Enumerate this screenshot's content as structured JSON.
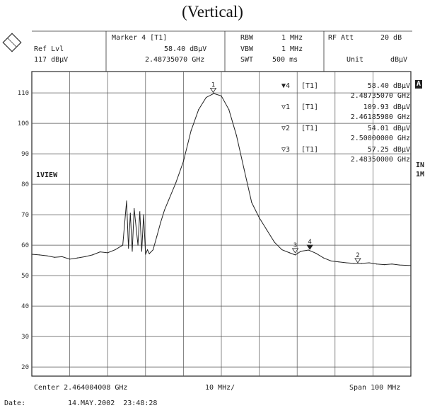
{
  "title": "(Vertical)",
  "header": {
    "ref_lvl_label": "Ref Lvl",
    "ref_lvl_value": "117 dBµV",
    "marker_label": "Marker 4 [T1]",
    "marker_level": "58.40 dBµV",
    "marker_freq": "2.48735070 GHz",
    "rbw_label": "RBW",
    "rbw_value": "1 MHz",
    "vbw_label": "VBW",
    "vbw_value": "1 MHz",
    "swt_label": "SWT",
    "swt_value": "500 ms",
    "rfatt_label": "RF Att",
    "rfatt_value": "20 dB",
    "unit_label": "Unit",
    "unit_value": "dBµV"
  },
  "side_labels": {
    "a": "A",
    "in": "IN",
    "lm": "1M",
    "view": "1VIEW"
  },
  "markers_table": [
    {
      "symbol": "▼",
      "num": "4",
      "tag": "[T1]",
      "level": "58.40 dBµV",
      "freq": "2.48735070 GHz"
    },
    {
      "symbol": "▽",
      "num": "1",
      "tag": "[T1]",
      "level": "109.93 dBµV",
      "freq": "2.46185980 GHz"
    },
    {
      "symbol": "▽",
      "num": "2",
      "tag": "[T1]",
      "level": "54.01 dBµV",
      "freq": "2.50000000 GHz"
    },
    {
      "symbol": "▽",
      "num": "3",
      "tag": "[T1]",
      "level": "57.25 dBµV",
      "freq": "2.48350000 GHz"
    }
  ],
  "footer": {
    "center": "Center 2.464004008 GHz",
    "div": "10 MHz/",
    "span": "Span 100 MHz",
    "date_label": "Date:",
    "date_value": "14.MAY.2002  23:48:28"
  },
  "chart_data": {
    "type": "line",
    "title": "(Vertical)",
    "xlabel": "",
    "ylabel": "",
    "x_unit": "GHz",
    "y_unit": "dBµV",
    "xlim": [
      2.414004008,
      2.514004008
    ],
    "ylim": [
      17,
      117
    ],
    "y_ticks": [
      20,
      30,
      40,
      50,
      60,
      70,
      80,
      90,
      100,
      110
    ],
    "grid": true,
    "color": "#222222",
    "series": [
      {
        "x": [
          2.414,
          2.416,
          2.418,
          2.42,
          2.422,
          2.424,
          2.426,
          2.428,
          2.43,
          2.432,
          2.434,
          2.436,
          2.438,
          2.439,
          2.4395,
          2.44,
          2.4405,
          2.441,
          2.442,
          2.4425,
          2.443,
          2.4435,
          2.444,
          2.4445,
          2.445,
          2.446,
          2.447,
          2.448,
          2.449,
          2.45,
          2.452,
          2.454,
          2.456,
          2.458,
          2.46,
          2.462,
          2.464,
          2.466,
          2.468,
          2.47,
          2.472,
          2.474,
          2.476,
          2.478,
          2.48,
          2.482,
          2.4835,
          2.485,
          2.487,
          2.489,
          2.491,
          2.493,
          2.495,
          2.497,
          2.499,
          2.501,
          2.503,
          2.505,
          2.507,
          2.509,
          2.511,
          2.514
        ],
        "y": [
          57.0,
          56.8,
          56.5,
          56.0,
          56.2,
          55.4,
          55.8,
          56.2,
          56.8,
          57.8,
          57.5,
          58.5,
          60.0,
          74.5,
          59.0,
          70.5,
          58.0,
          72.0,
          60.0,
          71.0,
          58.0,
          70.0,
          57.0,
          58.5,
          57.2,
          58.5,
          63.0,
          67.5,
          71.5,
          74.5,
          80.5,
          87.5,
          97.5,
          104.5,
          108.5,
          109.8,
          109.0,
          104.5,
          96.0,
          85.0,
          74.0,
          69.0,
          65.0,
          61.0,
          58.5,
          57.5,
          56.8,
          58.0,
          58.4,
          57.3,
          55.8,
          54.8,
          54.5,
          54.2,
          54.0,
          54.0,
          54.2,
          53.8,
          53.6,
          53.8,
          53.5,
          53.3
        ]
      }
    ],
    "markers": [
      {
        "label": "1",
        "x": 2.46186,
        "y": 109.93
      },
      {
        "label": "2",
        "x": 2.5,
        "y": 54.01
      },
      {
        "label": "3",
        "x": 2.4835,
        "y": 57.25
      },
      {
        "label": "4",
        "x": 2.48735,
        "y": 58.4
      }
    ]
  }
}
